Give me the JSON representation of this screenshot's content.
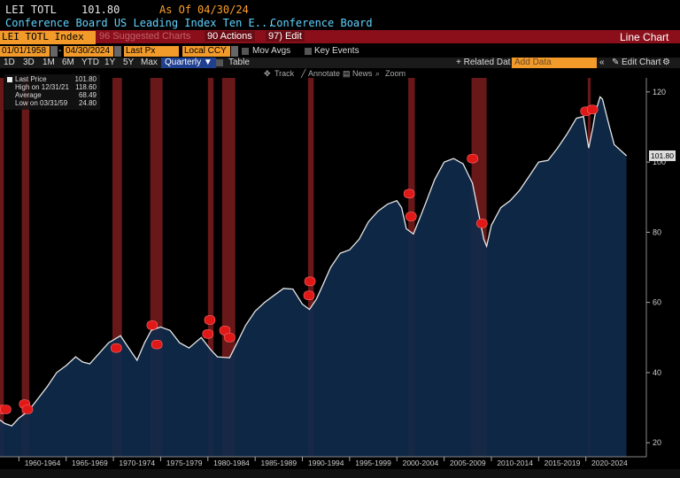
{
  "header": {
    "ticker": "LEI TOTL",
    "price": "101.80",
    "asof_label": "As Of",
    "asof_date": "04/30/24",
    "description": "Conference Board US Leading Index Ten E...",
    "source": "Conference Board"
  },
  "menu": {
    "index": "LEI TOTL Index",
    "suggested": "96 Suggested Charts",
    "actions": "90 Actions",
    "edit": "97) Edit",
    "mode": "Line Chart"
  },
  "fields": {
    "start": "01/01/1958",
    "end": "04/30/2024",
    "field": "Last Px",
    "currency": "Local CCY",
    "mov_avgs": "Mov Avgs",
    "key_events": "Key Events"
  },
  "toolbar": {
    "periods": [
      "1D",
      "3D",
      "1M",
      "6M",
      "YTD",
      "1Y",
      "5Y",
      "Max"
    ],
    "frequency": "Quarterly",
    "table": "Table",
    "related": "+ Related Dat",
    "related_placeholder": "Add Data",
    "edit_chart": "Edit Chart"
  },
  "subtools": {
    "track": "Track",
    "annotate": "Annotate",
    "news": "News",
    "zoom": "Zoom"
  },
  "legend": {
    "last_label": "Last Price",
    "last_value": "101.80",
    "high_label": "High on 12/31/21",
    "high_value": "118.60",
    "avg_label": "Average",
    "avg_value": "68.49",
    "low_label": "Low on 03/31/59",
    "low_value": "24.80"
  },
  "colors": {
    "area": "#0f2a4a",
    "line": "#e6e6e6",
    "recession": "#7a1c1c",
    "marker": "#e01818",
    "amber": "#ffa028"
  },
  "chart_data": {
    "type": "area",
    "series": [
      {
        "x": [
          1958,
          1958.5,
          1959.25,
          1960,
          1961,
          1962,
          1963,
          1964,
          1965,
          1966,
          1966.75,
          1967.5,
          1968.5,
          1969.5,
          1970.75,
          1971.5,
          1972.5,
          1973.3,
          1974,
          1975,
          1976,
          1977,
          1978,
          1979.3,
          1980.3,
          1981,
          1982.3,
          1983,
          1984,
          1985,
          1986,
          1987,
          1988,
          1989,
          1990,
          1990.75,
          1991.5,
          1992,
          1993,
          1994,
          1995,
          1996,
          1997,
          1998,
          1999,
          2000,
          2000.5,
          2001,
          2001.75,
          2002.5,
          2003,
          2004,
          2005,
          2006,
          2007,
          2008,
          2009.2,
          2009.5,
          2010,
          2011,
          2012,
          2013,
          2014,
          2015,
          2016,
          2017,
          2018,
          2019,
          2019.75,
          2020.3,
          2020.75,
          2021,
          2021.5,
          2021.75,
          2022.5,
          2023,
          2024.3
        ],
        "y": [
          26.5,
          25.5,
          24.8,
          27,
          29,
          32.5,
          36,
          40,
          42,
          44.5,
          43,
          42.5,
          45.5,
          48.5,
          50.5,
          47.5,
          43.5,
          48.5,
          52,
          53,
          52,
          48.5,
          47,
          50,
          46.5,
          44.5,
          44.2,
          48,
          53.5,
          57.5,
          60,
          62,
          64,
          63.8,
          59.5,
          58,
          61,
          64,
          70,
          74,
          75,
          78,
          83,
          86,
          88,
          89,
          87,
          81,
          79.5,
          84.5,
          88,
          95,
          100,
          101,
          99.5,
          94,
          78,
          76,
          82,
          87,
          89,
          92,
          96,
          100,
          100.5,
          104,
          108,
          112.5,
          113,
          104,
          110,
          114,
          118.6,
          118,
          110,
          105,
          101.8
        ]
      }
    ],
    "ylim": [
      16,
      124
    ],
    "xlim": [
      1958,
      2026.4
    ],
    "yticks": [
      20,
      40,
      60,
      80,
      100,
      120
    ],
    "xtick_labels": [
      "1960-1964",
      "1965-1969",
      "1970-1974",
      "1975-1979",
      "1980-1984",
      "1985-1989",
      "1990-1994",
      "1995-1999",
      "2000-2004",
      "2005-2009",
      "2010-2014",
      "2015-2019",
      "2020-2024"
    ],
    "last_value_label": "101.80",
    "recessions": [
      [
        1957.9,
        1958.4
      ],
      [
        1960.3,
        1961.1
      ],
      [
        1969.9,
        1970.9
      ],
      [
        1973.9,
        1975.2
      ],
      [
        1980.0,
        1980.6
      ],
      [
        1981.5,
        1982.9
      ],
      [
        1990.6,
        1991.2
      ],
      [
        2001.2,
        2001.9
      ],
      [
        2007.9,
        2009.5
      ],
      [
        2020.2,
        2020.5
      ]
    ],
    "event_markers": [
      [
        1958.0,
        29.5
      ],
      [
        1958.6,
        29.5
      ],
      [
        1960.6,
        31
      ],
      [
        1960.9,
        29.5
      ],
      [
        1970.3,
        47
      ],
      [
        1974.1,
        53.5
      ],
      [
        1974.6,
        48
      ],
      [
        1980.2,
        55
      ],
      [
        1980.0,
        51
      ],
      [
        1981.8,
        52
      ],
      [
        1982.3,
        50
      ],
      [
        1990.8,
        66
      ],
      [
        1990.7,
        62
      ],
      [
        2001.3,
        91
      ],
      [
        2001.5,
        84.5
      ],
      [
        2008.0,
        101
      ],
      [
        2009.0,
        82.5
      ],
      [
        2020.0,
        114.5
      ],
      [
        2020.7,
        115
      ]
    ],
    "grid": false,
    "legend_position": "top-left"
  }
}
